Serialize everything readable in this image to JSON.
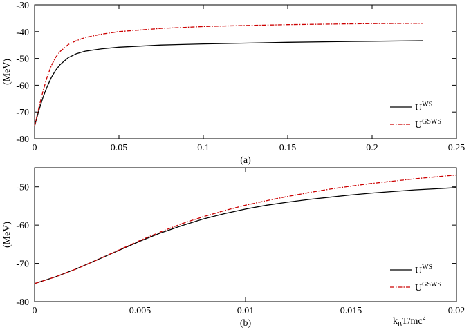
{
  "chart_data": [
    {
      "type": "line",
      "panel_label": "(a)",
      "ylabel": "(MeV)",
      "xlabel": "",
      "xlim": [
        0,
        0.25
      ],
      "ylim": [
        -80,
        -30
      ],
      "xticks": [
        0,
        0.05,
        0.1,
        0.15,
        0.2,
        0.25
      ],
      "xtick_labels": [
        "0",
        "0.05",
        "0.1",
        "0.15",
        "0.2",
        "0.25"
      ],
      "yticks": [
        -80,
        -70,
        -60,
        -50,
        -40,
        -30
      ],
      "ytick_labels": [
        "-80",
        "-70",
        "-60",
        "-50",
        "-40",
        "-30"
      ],
      "legend_position": "bottom-right",
      "series": [
        {
          "name": "U",
          "name_sup": "WS",
          "color": "#000000",
          "style": "solid",
          "x": [
            0,
            0.0025,
            0.005,
            0.0075,
            0.01,
            0.0125,
            0.015,
            0.02,
            0.025,
            0.03,
            0.04,
            0.05,
            0.075,
            0.1,
            0.125,
            0.15,
            0.175,
            0.2,
            0.23
          ],
          "y": [
            -75.3,
            -69.5,
            -64.5,
            -60.5,
            -57.0,
            -54.4,
            -52.4,
            -49.7,
            -48.2,
            -47.3,
            -46.4,
            -45.8,
            -45.0,
            -44.6,
            -44.3,
            -44.0,
            -43.8,
            -43.6,
            -43.4
          ]
        },
        {
          "name": "U",
          "name_sup": "GSWS",
          "color": "#cc0000",
          "style": "dashdot",
          "x": [
            0,
            0.0025,
            0.005,
            0.0075,
            0.01,
            0.0125,
            0.015,
            0.02,
            0.025,
            0.03,
            0.04,
            0.05,
            0.075,
            0.1,
            0.125,
            0.15,
            0.175,
            0.2,
            0.23
          ],
          "y": [
            -75.3,
            -68.5,
            -62.2,
            -56.8,
            -52.6,
            -49.6,
            -47.5,
            -44.8,
            -43.3,
            -42.2,
            -40.9,
            -40.0,
            -38.8,
            -38.1,
            -37.7,
            -37.4,
            -37.2,
            -37.0,
            -36.9
          ]
        }
      ]
    },
    {
      "type": "line",
      "panel_label": "(b)",
      "ylabel": "(MeV)",
      "xlabel_main": "k",
      "xlabel_sub": "B",
      "xlabel_mid": "T/mc",
      "xlabel_sup": "2",
      "xlim": [
        0,
        0.02
      ],
      "ylim": [
        -80,
        -45
      ],
      "xticks": [
        0,
        0.005,
        0.01,
        0.015,
        0.02
      ],
      "xtick_labels": [
        "0",
        "0.005",
        "0.01",
        "0.015",
        "0.02"
      ],
      "yticks": [
        -80,
        -70,
        -60,
        -50
      ],
      "ytick_labels": [
        "-80",
        "-70",
        "-60",
        "-50"
      ],
      "legend_position": "bottom-right",
      "series": [
        {
          "name": "U",
          "name_sup": "WS",
          "color": "#000000",
          "style": "solid",
          "x": [
            0,
            0.001,
            0.002,
            0.003,
            0.004,
            0.005,
            0.006,
            0.007,
            0.008,
            0.009,
            0.01,
            0.011,
            0.012,
            0.013,
            0.014,
            0.015,
            0.016,
            0.017,
            0.018,
            0.019,
            0.02
          ],
          "y": [
            -75.3,
            -73.5,
            -71.4,
            -69.0,
            -66.6,
            -64.2,
            -62.0,
            -60.1,
            -58.4,
            -57.0,
            -55.8,
            -54.8,
            -54.0,
            -53.3,
            -52.7,
            -52.1,
            -51.6,
            -51.2,
            -50.8,
            -50.5,
            -50.2
          ]
        },
        {
          "name": "U",
          "name_sup": "GSWS",
          "color": "#cc0000",
          "style": "dashdot",
          "x": [
            0,
            0.001,
            0.002,
            0.003,
            0.004,
            0.005,
            0.006,
            0.007,
            0.008,
            0.009,
            0.01,
            0.011,
            0.012,
            0.013,
            0.014,
            0.015,
            0.016,
            0.017,
            0.018,
            0.019,
            0.02
          ],
          "y": [
            -75.3,
            -73.5,
            -71.4,
            -69.0,
            -66.5,
            -64.0,
            -61.7,
            -59.6,
            -57.8,
            -56.2,
            -54.8,
            -53.6,
            -52.5,
            -51.5,
            -50.6,
            -49.8,
            -49.1,
            -48.5,
            -47.9,
            -47.4,
            -46.9
          ]
        }
      ]
    }
  ]
}
